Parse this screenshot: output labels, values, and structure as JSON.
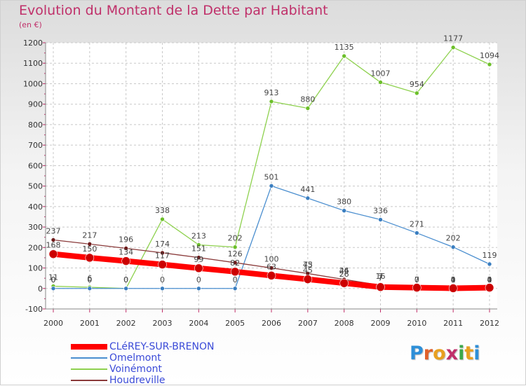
{
  "title": "Evolution du Montant de la Dette par Habitant",
  "unit": "(en €)",
  "logo": {
    "letters": [
      "P",
      "r",
      "o",
      "x",
      "i",
      "t",
      "i"
    ],
    "colors": [
      "#2e8fd8",
      "#e0602a",
      "#e8a020",
      "#c0306a",
      "#3ca84a",
      "#e8a020",
      "#2e8fd8"
    ]
  },
  "chart_data": {
    "type": "line",
    "x": [
      "2000",
      "2001",
      "2002",
      "2003",
      "2004",
      "2005",
      "2006",
      "2007",
      "2008",
      "2009",
      "2010",
      "2011",
      "2012"
    ],
    "ylim": [
      -100,
      1200
    ],
    "yticks": [
      -100,
      0,
      100,
      200,
      300,
      400,
      500,
      600,
      700,
      800,
      900,
      1000,
      1100,
      1200
    ],
    "grid": true,
    "legend_position": "bottom-left",
    "series": [
      {
        "name": "CLéREY-SUR-BRENON",
        "color": "#ff0000",
        "marker": "#cc0000",
        "width": 8,
        "values": [
          168,
          150,
          134,
          117,
          99,
          82,
          63,
          45,
          26,
          7,
          4,
          1,
          4
        ],
        "labels": [
          "168",
          "150",
          "134",
          "117",
          "99",
          "82",
          "63",
          "45",
          "26",
          "7",
          "",
          "",
          ""
        ]
      },
      {
        "name": "Omelmont",
        "color": "#4a8ecf",
        "marker": "#3a7ec0",
        "width": 1.3,
        "values": [
          0,
          0,
          0,
          0,
          0,
          0,
          501,
          441,
          380,
          336,
          271,
          202,
          119
        ],
        "labels": [
          "0",
          "0",
          "0",
          "0",
          "0",
          "0",
          "501",
          "441",
          "380",
          "336",
          "271",
          "202",
          "119"
        ]
      },
      {
        "name": "Voinémont",
        "color": "#8ed14e",
        "marker": "#6cbf2a",
        "width": 1.3,
        "values": [
          11,
          6,
          0,
          338,
          213,
          202,
          913,
          880,
          1135,
          1007,
          954,
          1177,
          1094
        ],
        "labels": [
          "11",
          "6",
          "0",
          "338",
          "213",
          "202",
          "913",
          "880",
          "1135",
          "1007",
          "954",
          "1177",
          "1094"
        ]
      },
      {
        "name": "Houdreville",
        "color": "#8a3a3a",
        "marker": "#6e1a1a",
        "width": 1.3,
        "values": [
          237,
          217,
          196,
          174,
          151,
          126,
          100,
          73,
          44,
          16,
          0,
          0,
          0
        ],
        "labels": [
          "237",
          "217",
          "196",
          "174",
          "151",
          "126",
          "100",
          "73",
          "44",
          "16",
          "0",
          "0",
          "0"
        ]
      }
    ],
    "extra_labels": [
      {
        "x": 0,
        "y": 0,
        "text": "0"
      },
      {
        "x": 1,
        "y": 0,
        "text": "0"
      },
      {
        "x": 7,
        "y": 73,
        "text": "45"
      },
      {
        "x": 8,
        "y": 44,
        "text": "26"
      },
      {
        "x": 9,
        "y": 16,
        "text": "7"
      },
      {
        "x": 10,
        "y": 0,
        "text": "7"
      },
      {
        "x": 11,
        "y": 0,
        "text": "4"
      },
      {
        "x": 11,
        "y": 0,
        "text": "1"
      },
      {
        "x": 12,
        "y": 0,
        "text": "4"
      },
      {
        "x": 12,
        "y": 0,
        "text": "1"
      }
    ]
  }
}
